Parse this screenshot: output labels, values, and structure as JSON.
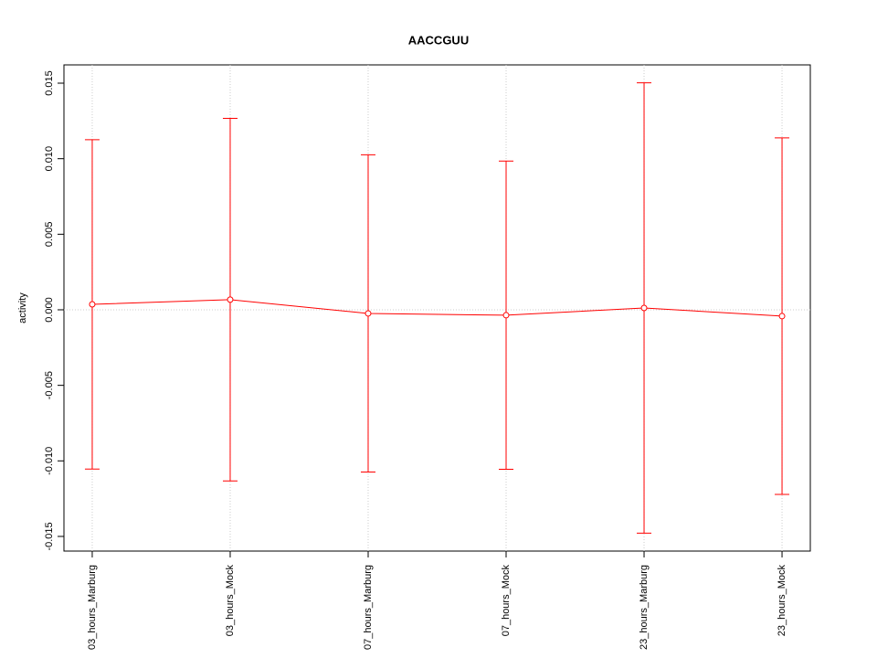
{
  "chart_data": {
    "type": "line",
    "title": "AACCGUU",
    "y_label": "activity",
    "categories": [
      "03_hours_Marburg",
      "03_hours_Mock",
      "07_hours_Marburg",
      "07_hours_Mock",
      "23_hours_Marburg",
      "23_hours_Mock"
    ],
    "series": [
      {
        "color": "#ff0000",
        "values": [
          0.00036,
          0.00067,
          -0.00024,
          -0.00036,
          0.00012,
          -0.00042
        ],
        "errors": [
          0.0109,
          0.012,
          0.0105,
          0.0102,
          0.0149,
          0.0118
        ]
      }
    ],
    "ylim": [
      -0.01597,
      0.01621
    ],
    "yticks": [
      -0.015,
      {
        "value": -0.01,
        "label": "-0.010"
      },
      -0.005,
      {
        "value": 0,
        "label": "0.000"
      },
      0.005,
      {
        "value": 0.01,
        "label": "0.010"
      },
      0.015
    ],
    "grid": true,
    "reference_line": 0
  }
}
